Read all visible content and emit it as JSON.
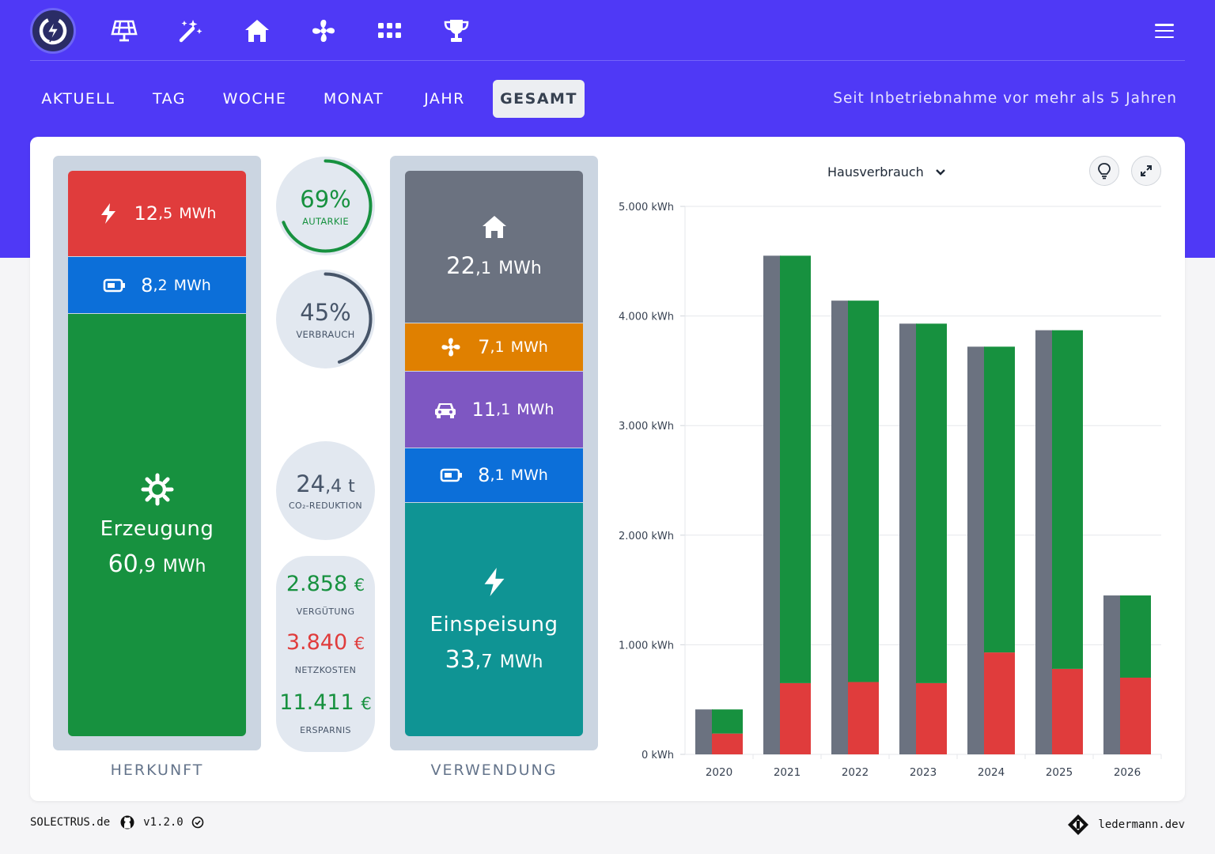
{
  "nav": {
    "icons": [
      "logo-icon",
      "solar-panel-icon",
      "magic-wand-icon",
      "house-icon",
      "fan-icon",
      "grid-dots-icon",
      "trophy-icon",
      "menu-icon"
    ]
  },
  "tabs": [
    {
      "label": "AKTUELL",
      "active": false
    },
    {
      "label": "TAG",
      "active": false
    },
    {
      "label": "WOCHE",
      "active": false
    },
    {
      "label": "MONAT",
      "active": false
    },
    {
      "label": "JAHR",
      "active": false
    },
    {
      "label": "GESAMT",
      "active": true
    }
  ],
  "period_text": "Seit Inbetriebnahme vor mehr als 5 Jahren",
  "herkunft": {
    "title": "HERKUNFT",
    "grid": {
      "int": "12",
      "dec": ",5",
      "unit": "MWh",
      "color": "#e03c3c"
    },
    "battery": {
      "int": "8",
      "dec": ",2",
      "unit": "MWh",
      "color": "#0c6fd9"
    },
    "production": {
      "label": "Erzeugung",
      "int": "60",
      "dec": ",9",
      "unit": "MWh",
      "color": "#17913f"
    }
  },
  "stats": {
    "autarkie": {
      "value": "69%",
      "label": "AUTARKIE",
      "fraction": 0.69,
      "color": "#17913f"
    },
    "verbrauch": {
      "value": "45%",
      "label": "VERBRAUCH",
      "fraction": 0.45,
      "color": "#475569"
    },
    "co2": {
      "int": "24",
      "dec": ",4",
      "unit": "t",
      "label": "CO₂-REDUKTION"
    },
    "verguetung": {
      "value": "2.858",
      "unit": "€",
      "label": "VERGÜTUNG",
      "color": "#17913f"
    },
    "netzkosten": {
      "value": "3.840",
      "unit": "€",
      "label": "NETZKOSTEN",
      "color": "#e03c3c"
    },
    "ersparnis": {
      "value": "11.411",
      "unit": "€",
      "label": "ERSPARNIS",
      "color": "#17913f"
    }
  },
  "verwendung": {
    "title": "VERWENDUNG",
    "house": {
      "int": "22",
      "dec": ",1",
      "unit": "MWh",
      "color": "#6b7280"
    },
    "heatpump": {
      "int": "7",
      "dec": ",1",
      "unit": "MWh",
      "color": "#e08000"
    },
    "car": {
      "int": "11",
      "dec": ",1",
      "unit": "MWh",
      "color": "#7e57c2"
    },
    "battery": {
      "int": "8",
      "dec": ",1",
      "unit": "MWh",
      "color": "#0c6fd9"
    },
    "feed_in": {
      "label": "Einspeisung",
      "int": "33",
      "dec": ",7",
      "unit": "MWh",
      "color": "#0f9494"
    }
  },
  "chart_select": "Hausverbrauch",
  "chart_data": {
    "type": "bar",
    "categories": [
      "2020",
      "2021",
      "2022",
      "2023",
      "2024",
      "2025",
      "2026"
    ],
    "series": [
      {
        "values": [
          410,
          4550,
          4140,
          3930,
          3720,
          3870,
          1450
        ],
        "color": "#6b7280"
      },
      {
        "values": [
          190,
          650,
          660,
          650,
          930,
          780,
          700
        ],
        "color": "#e03c3c"
      },
      {
        "values": [
          220,
          3900,
          3480,
          3280,
          2790,
          3090,
          750
        ],
        "color": "#17913f"
      }
    ],
    "ylim": [
      0,
      5000
    ],
    "yticks": [
      "0 kWh",
      "1.000 kWh",
      "2.000 kWh",
      "3.000 kWh",
      "4.000 kWh",
      "5.000 kWh"
    ],
    "grid": true
  },
  "footer": {
    "brand": "SOLECTRUS.de",
    "version": "v1.2.0",
    "credit": "ledermann.dev"
  }
}
